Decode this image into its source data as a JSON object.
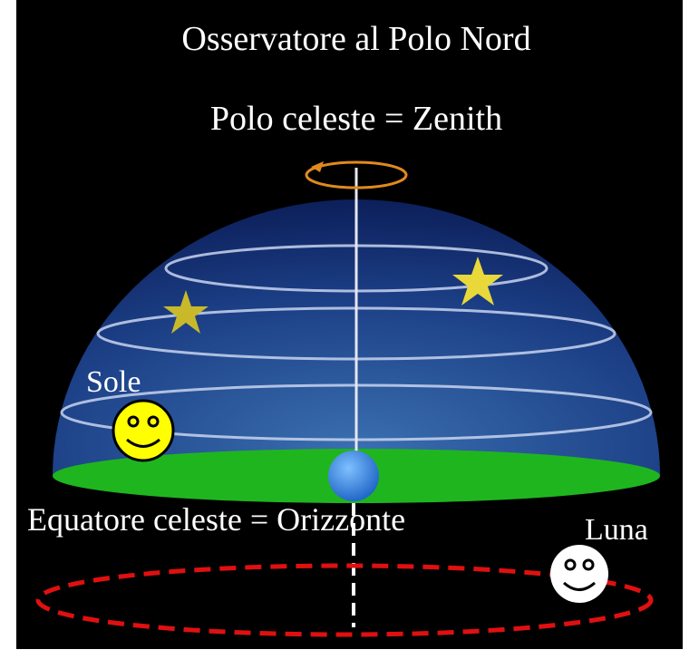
{
  "title": "Osservatore al Polo Nord",
  "labels": {
    "pole": "Polo celeste = Zenith",
    "sun": "Sole",
    "equator": "Equatore celeste = Orizzonte",
    "moon": "Luna"
  }
}
